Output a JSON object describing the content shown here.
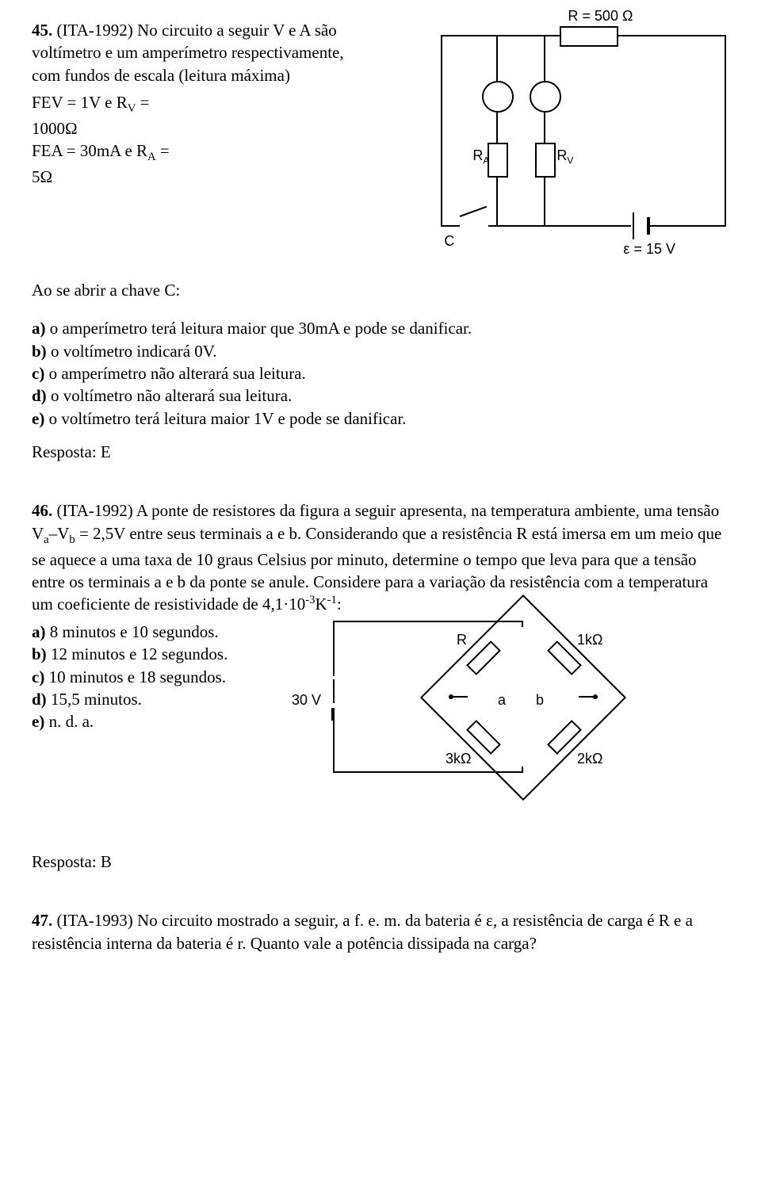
{
  "q45": {
    "number": "45.",
    "source": "(ITA-1992)",
    "intro": "No circuito a seguir V e A são voltímetro e um amperímetro respectivamente, com fundos de escala (leitura máxima)",
    "lines": [
      "FEV = 1V e R",
      "1000Ω",
      "FEA = 30mA e R",
      "5Ω"
    ],
    "sub_v": "V",
    "sub_a": "A",
    "equals": " =",
    "after_open": "Ao se abrir a chave C:",
    "options": {
      "a": "a) o amperímetro terá leitura maior que 30mA e pode se danificar.",
      "b": "b) o voltímetro indicará 0V.",
      "c": "c) o amperímetro não alterará sua leitura.",
      "d": "d) o voltímetro não alterará sua leitura.",
      "e": "e) o voltímetro terá leitura maior 1V e pode se danificar."
    },
    "answer": "Resposta: E",
    "fig": {
      "R": "R = 500 Ω",
      "RA": "R",
      "RA_sub": "A",
      "RV": "R",
      "RV_sub": "V",
      "C": "C",
      "emf": "ε = 15 V"
    }
  },
  "q46": {
    "number": "46.",
    "source": "(ITA-1992)",
    "intro_before_sub": "A ponte de resistores da figura a seguir apresenta, na temperatura ambiente, uma tensão V",
    "sub_a": "a",
    "dash_v": "–V",
    "sub_b": "b",
    "intro_after_sub": " = 2,5V entre seus terminais a e b. Considerando que a resistência R está imersa em um meio que se aquece a uma taxa de 10 graus Celsius por minuto, determine o tempo que leva para que a tensão entre os terminais a e b da ponte se anule. Considere para a variação da resistência com a temperatura um coeficiente de resistividade de 4,1·10",
    "exp_neg3": "-3",
    "k_unit": "K",
    "exp_neg1": "-1",
    "colon": ":",
    "options": {
      "a": "a) 8 minutos e 10 segundos.",
      "b": "b) 12 minutos e 12 segundos.",
      "c": "c) 10 minutos e 18 segundos.",
      "d": "d) 15,5 minutos.",
      "e": "e) n. d. a."
    },
    "answer": "Resposta: B",
    "fig": {
      "V": "30 V",
      "R": "R",
      "R1k": "1kΩ",
      "R3k": "3kΩ",
      "R2k": "2kΩ",
      "a": "a",
      "b": "b"
    }
  },
  "q47": {
    "number": "47.",
    "source": "(ITA-1993)",
    "text": "No circuito mostrado a seguir, a f. e. m. da bateria é ε, a resistência de carga é R e a resistência interna da bateria é r. Quanto vale a potência dissipada na carga?"
  }
}
